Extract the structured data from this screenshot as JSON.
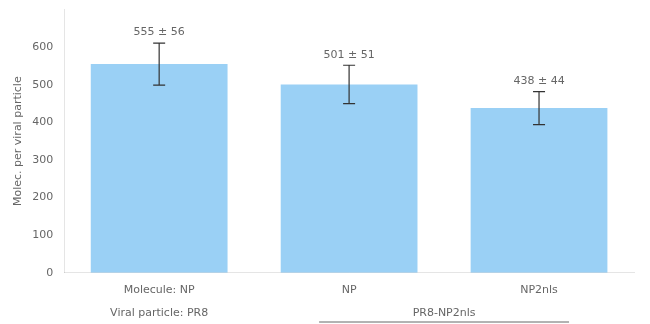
{
  "chart_data": {
    "type": "bar",
    "categories": [
      "Molecule: NP",
      "NP",
      "NP2nls"
    ],
    "values": [
      555,
      501,
      438
    ],
    "errors": [
      56,
      51,
      44
    ],
    "value_labels": [
      "555 ± 56",
      "501 ± 51",
      "438 ± 44"
    ],
    "data_labels": true,
    "ylabel": "Molec. per viral particle",
    "ylim": [
      0,
      700
    ],
    "yticks": [
      0,
      100,
      200,
      300,
      400,
      500,
      600
    ],
    "grid": false,
    "annotations": [
      "Viral particle: PR8",
      "PR8-NP2nls"
    ]
  }
}
